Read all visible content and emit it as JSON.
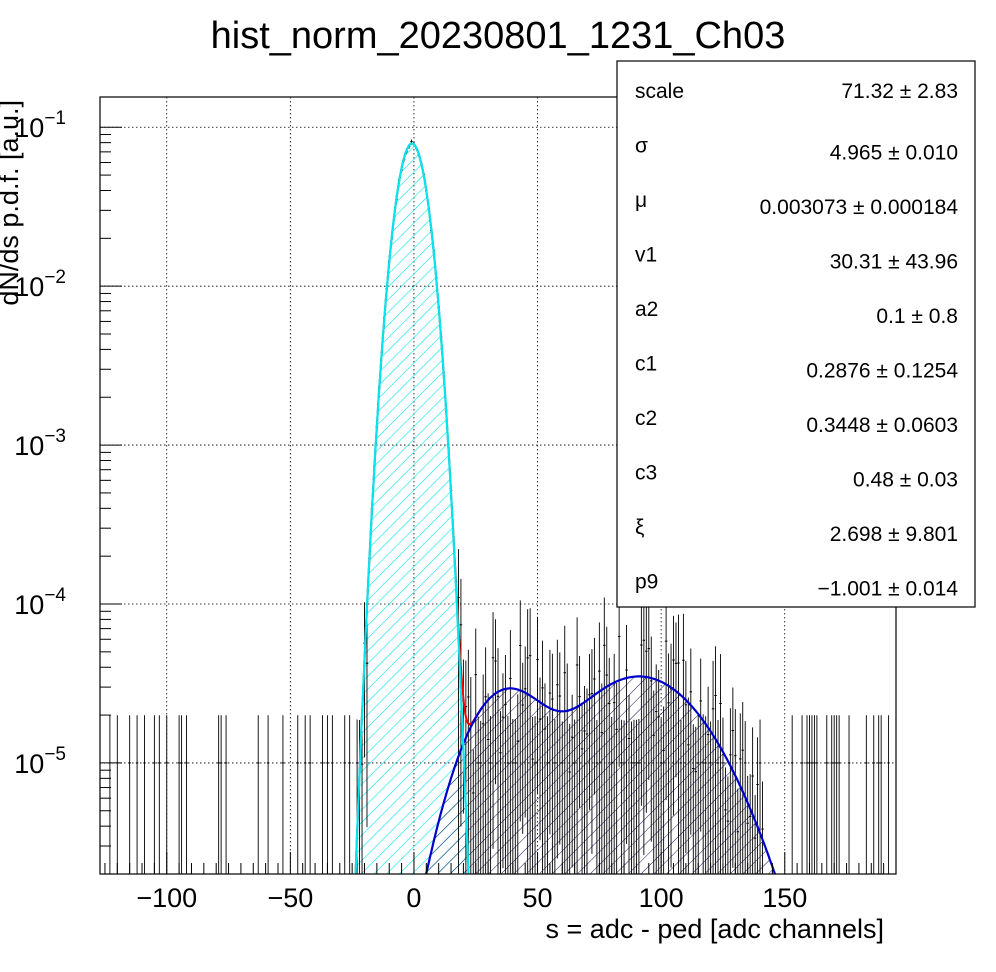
{
  "chart_data": {
    "type": "histogram",
    "title": "hist_norm_20230801_1231_Ch03",
    "xlabel": "s = adc - ped [adc channels]",
    "ylabel": "dN/ds p.d.f. [a.u.]",
    "xlim": [
      -127,
      195
    ],
    "ylim": [
      2e-06,
      0.155
    ],
    "yscale": "log",
    "grid": true,
    "x_ticks": [
      {
        "value": -100,
        "label": "−100"
      },
      {
        "value": -50,
        "label": "−50"
      },
      {
        "value": 0,
        "label": "0"
      },
      {
        "value": 50,
        "label": "50"
      },
      {
        "value": 100,
        "label": "100"
      },
      {
        "value": 150,
        "label": "150"
      }
    ],
    "y_ticks": [
      {
        "value": 1e-05,
        "base": "10",
        "exp": "−5"
      },
      {
        "value": 0.0001,
        "base": "10",
        "exp": "−4"
      },
      {
        "value": 0.001,
        "base": "10",
        "exp": "−3"
      },
      {
        "value": 0.01,
        "base": "10",
        "exp": "−2"
      },
      {
        "value": 0.1,
        "base": "10",
        "exp": "−1"
      }
    ],
    "gauss_fit": {
      "scale": 0.079,
      "mu": -0.8,
      "sigma": 4.965,
      "color": "#00e5ee"
    },
    "bump_fit": {
      "color": "#0000cc",
      "peaks": [
        {
          "amp": 2.7e-05,
          "mu": 37,
          "sigma": 14
        },
        {
          "amp": 3.5e-05,
          "mu": 91,
          "sigma": 23
        }
      ]
    },
    "total_fit_color": "#ff0000",
    "histogram_color": "#000000",
    "gauss_fill_color": "#00e5ee",
    "bump_fill_color": "#1a1a66",
    "stats": {
      "entries": [
        {
          "name": "scale",
          "value": "71.32 ± 2.83"
        },
        {
          "name": "σ",
          "value": "4.965 ± 0.010"
        },
        {
          "name": "μ",
          "value": "0.003073 ± 0.000184"
        },
        {
          "name": "v1",
          "value": "30.31 ± 43.96"
        },
        {
          "name": "a2",
          "value": "0.1 ± 0.8"
        },
        {
          "name": "c1",
          "value": "0.2876 ± 0.1254"
        },
        {
          "name": "c2",
          "value": "0.3448 ± 0.0603"
        },
        {
          "name": "c3",
          "value": "0.48 ± 0.03"
        },
        {
          "name": "ξ",
          "value": "2.698 ± 9.801"
        },
        {
          "name": "p9",
          "value": "−1.001 ± 0.014"
        }
      ]
    }
  }
}
